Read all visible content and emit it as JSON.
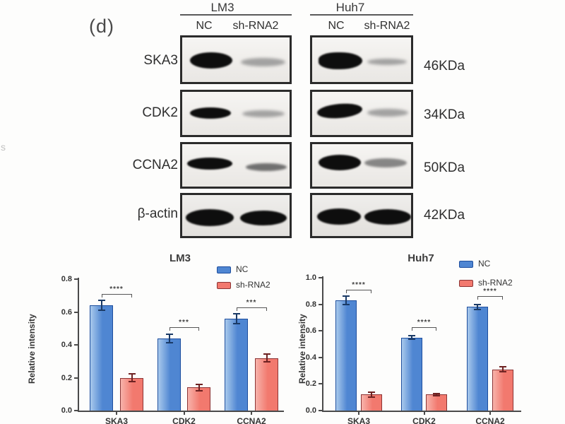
{
  "panel": {
    "label": "(d)"
  },
  "stray_mark": "s",
  "blot": {
    "column_groups": [
      {
        "cell_line": "LM3",
        "lane_labels": [
          "NC",
          "sh-RNA2"
        ]
      },
      {
        "cell_line": "Huh7",
        "lane_labels": [
          "NC",
          "sh-RNA2"
        ]
      }
    ],
    "rows": [
      {
        "protein": "SKA3",
        "molecular_weight": "46KDa"
      },
      {
        "protein": "CDK2",
        "molecular_weight": "34KDa"
      },
      {
        "protein": "CCNA2",
        "molecular_weight": "50KDa"
      },
      {
        "protein": "β-actin",
        "molecular_weight": "42KDa"
      }
    ]
  },
  "chart_data": [
    {
      "type": "bar",
      "title": "LM3",
      "ylabel": "Relative intensity",
      "categories": [
        "SKA3",
        "CDK2",
        "CCNA2"
      ],
      "series": [
        {
          "name": "NC",
          "color": "#4f86d2",
          "color_light": "#a9c9ec",
          "border": "#1d4e9e",
          "error_color": "#1a3a66",
          "values": [
            0.64,
            0.44,
            0.56
          ],
          "errors": [
            0.03,
            0.025,
            0.03
          ]
        },
        {
          "name": "sh-RNA2",
          "color": "#f2796e",
          "color_light": "#f7b3ab",
          "border": "#8c3434",
          "error_color": "#6e2222",
          "values": [
            0.2,
            0.14,
            0.32
          ],
          "errors": [
            0.025,
            0.02,
            0.025
          ]
        }
      ],
      "significance": [
        "****",
        "***",
        "***"
      ],
      "ylim": [
        0,
        0.8
      ],
      "yticks": [
        0.0,
        0.2,
        0.4,
        0.6,
        0.8
      ],
      "legend_position": "top-right",
      "grid": false
    },
    {
      "type": "bar",
      "title": "Huh7",
      "ylabel": "Relative intensity",
      "categories": [
        "SKA3",
        "CDK2",
        "CCNA2"
      ],
      "series": [
        {
          "name": "NC",
          "color": "#4f86d2",
          "color_light": "#a9c9ec",
          "border": "#1d4e9e",
          "error_color": "#1a3a66",
          "values": [
            0.83,
            0.55,
            0.78
          ],
          "errors": [
            0.03,
            0.015,
            0.02
          ]
        },
        {
          "name": "sh-RNA2",
          "color": "#f2796e",
          "color_light": "#f7b3ab",
          "border": "#8c3434",
          "error_color": "#6e2222",
          "values": [
            0.12,
            0.12,
            0.31
          ],
          "errors": [
            0.02,
            0.01,
            0.02
          ]
        }
      ],
      "significance": [
        "****",
        "****",
        "****"
      ],
      "ylim": [
        0,
        1.0
      ],
      "yticks": [
        0.0,
        0.2,
        0.4,
        0.6,
        0.8,
        1.0
      ],
      "legend_position": "top-right",
      "grid": false
    }
  ]
}
